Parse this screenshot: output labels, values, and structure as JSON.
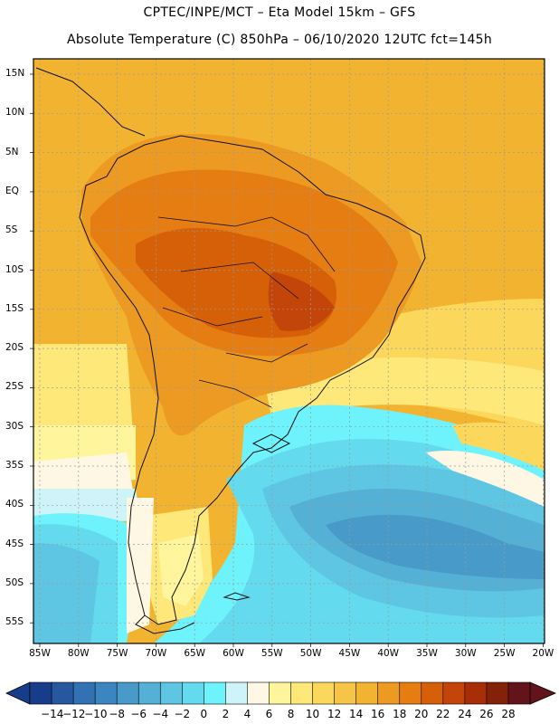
{
  "title": {
    "line1": "CPTEC/INPE/MCT –  Eta Model 15km – GFS",
    "line2": "Absolute Temperature (C) 850hPa – 06/10/2020 12UTC fct=145h"
  },
  "map": {
    "lat_labels": [
      "15N",
      "10N",
      "5N",
      "EQ",
      "5S",
      "10S",
      "15S",
      "20S",
      "25S",
      "30S",
      "35S",
      "40S",
      "45S",
      "50S",
      "55S"
    ],
    "lon_labels": [
      "85W",
      "80W",
      "75W",
      "70W",
      "65W",
      "60W",
      "55W",
      "50W",
      "45W",
      "40W",
      "35W",
      "30W",
      "25W",
      "20W"
    ]
  },
  "colorbar": {
    "labels": [
      "-14",
      "-12",
      "-10",
      "-8",
      "-6",
      "-4",
      "-2",
      "0",
      "2",
      "4",
      "6",
      "8",
      "10",
      "12",
      "14",
      "16",
      "18",
      "20",
      "22",
      "24",
      "26",
      "28"
    ],
    "colors": [
      "#173c8a",
      "#2658a0",
      "#3172b2",
      "#3b86c0",
      "#489bc9",
      "#55b0d6",
      "#5ec6e2",
      "#63daee",
      "#6ef2fb",
      "#cef4fa",
      "#fdf7e3",
      "#fef59c",
      "#fde879",
      "#fbd75c",
      "#f6c547",
      "#f2b430",
      "#ec9a22",
      "#e57d12",
      "#d56008",
      "#c44509",
      "#a82e08",
      "#832208",
      "#62141a"
    ]
  },
  "palette": {
    "cold_deep": "#3b86c0",
    "cold_mid": "#489bc9",
    "cyan": "#63daee",
    "cyan_light": "#6ef2fb",
    "cream": "#fdf7e3",
    "yellow": "#fde879",
    "yellow_mid": "#f6c547",
    "orange_light": "#f2b430",
    "orange": "#ec9a22",
    "orange_dark": "#e57d12",
    "hot": "#d56008"
  }
}
